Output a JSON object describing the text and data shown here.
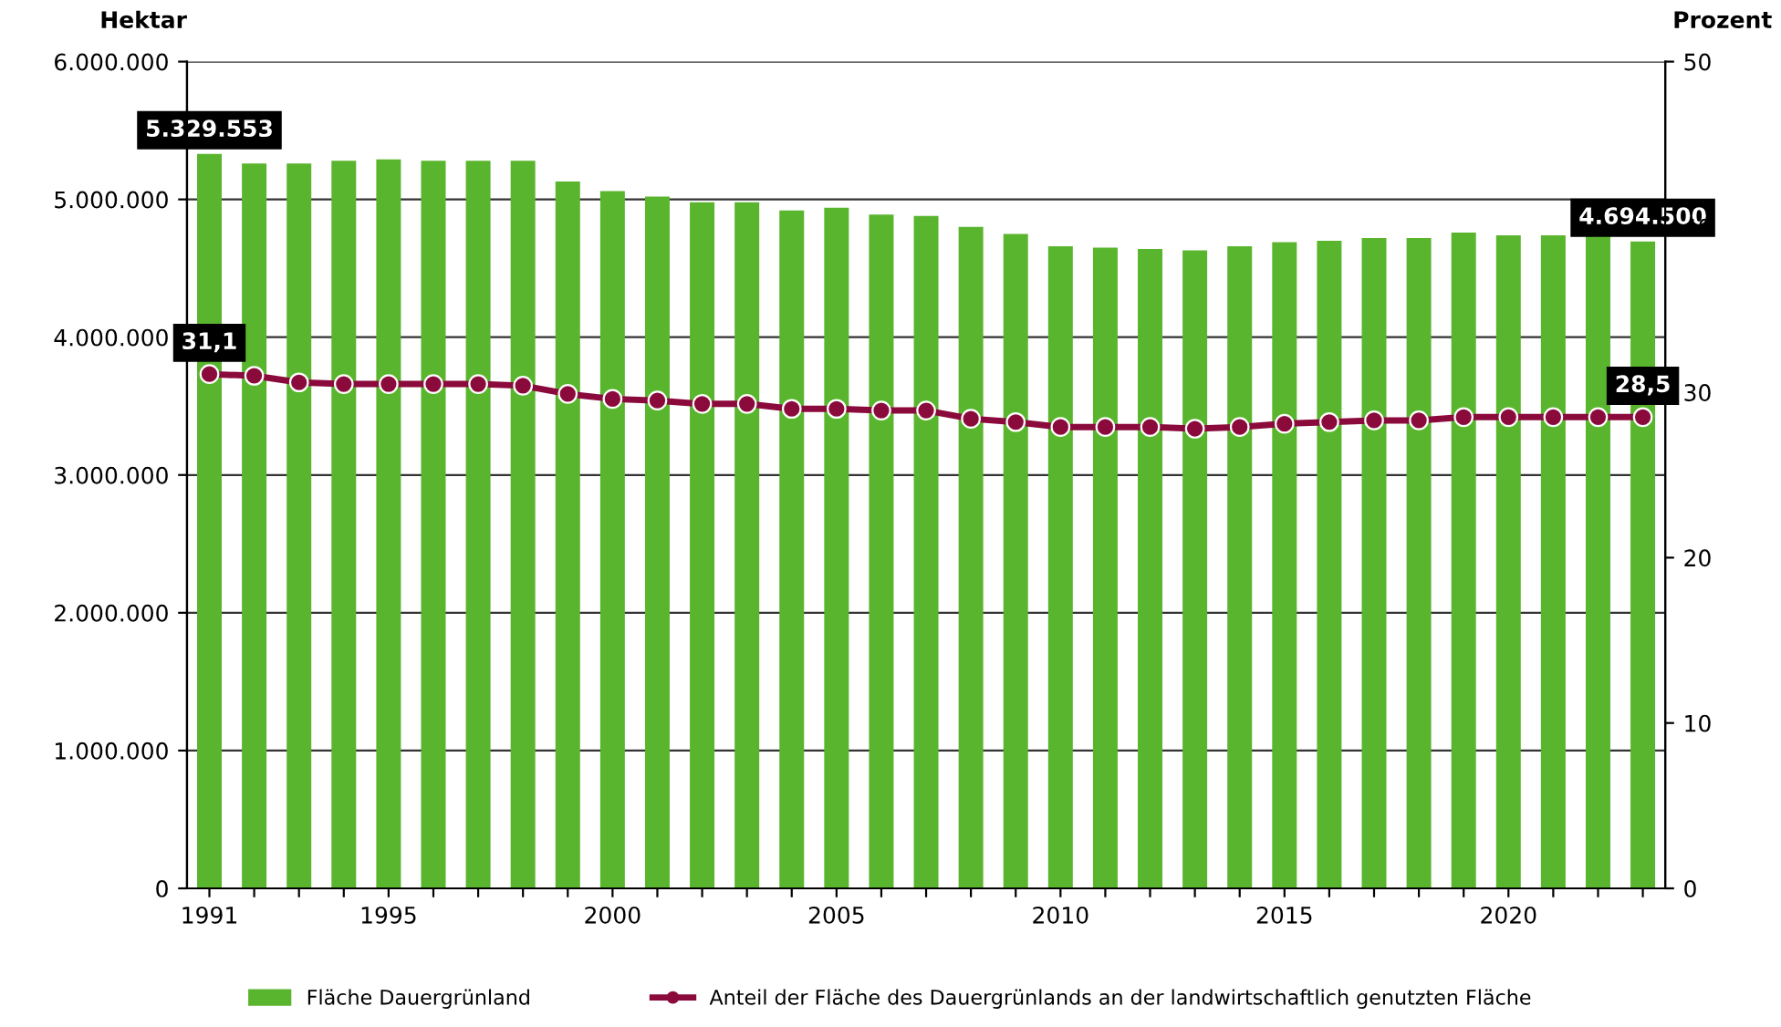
{
  "chart_data": {
    "type": "bar",
    "ylabel": "Hektar",
    "y2label": "Prozent",
    "x": [
      1991,
      1992,
      1993,
      1994,
      1995,
      1996,
      1997,
      1998,
      1999,
      2000,
      2001,
      2002,
      2003,
      2004,
      2005,
      2006,
      2007,
      2008,
      2009,
      2010,
      2011,
      2012,
      2013,
      2014,
      2015,
      2016,
      2017,
      2018,
      2019,
      2020,
      2021,
      2022,
      2023
    ],
    "xlim": [
      1990.5,
      2023.5
    ],
    "xticks": [
      1991,
      {
        "value": 1992,
        "label": null
      },
      {
        "value": 1993,
        "label": null
      },
      {
        "value": 1994,
        "label": null
      },
      1995,
      {
        "value": 1996,
        "label": null
      },
      {
        "value": 1997,
        "label": null
      },
      {
        "value": 1998,
        "label": null
      },
      {
        "value": 1999,
        "label": null
      },
      2000,
      {
        "value": 2001,
        "label": null
      },
      {
        "value": 2002,
        "label": null
      },
      {
        "value": 2003,
        "label": null
      },
      {
        "value": 2004,
        "label": null
      },
      2005,
      {
        "value": 2006,
        "label": null
      },
      {
        "value": 2007,
        "label": null
      },
      {
        "value": 2008,
        "label": null
      },
      {
        "value": 2009,
        "label": null
      },
      2010,
      {
        "value": 2011,
        "label": null
      },
      {
        "value": 2012,
        "label": null
      },
      {
        "value": 2013,
        "label": null
      },
      {
        "value": 2014,
        "label": null
      },
      2015,
      {
        "value": 2016,
        "label": null
      },
      {
        "value": 2017,
        "label": null
      },
      {
        "value": 2018,
        "label": null
      },
      {
        "value": 2019,
        "label": null
      },
      2020,
      {
        "value": 2021,
        "label": null
      },
      {
        "value": 2022,
        "label": null
      },
      {
        "value": 2023,
        "label": null
      }
    ],
    "ylim": [
      0,
      6000000
    ],
    "yticks": [
      0,
      {
        "value": 1000000,
        "label": "1.000.000"
      },
      {
        "value": 2000000,
        "label": "2.000.000"
      },
      {
        "value": 3000000,
        "label": "3.000.000"
      },
      {
        "value": 4000000,
        "label": "4.000.000"
      },
      {
        "value": 5000000,
        "label": "5.000.000"
      },
      {
        "value": 6000000,
        "label": "6.000.000"
      }
    ],
    "y2lim": [
      0,
      50
    ],
    "y2ticks": [
      0,
      10,
      20,
      30,
      40,
      50
    ],
    "grid": "y",
    "legend": "bottom",
    "series": [
      {
        "name": "Fläche Dauergrünland",
        "color": "#5ab52e",
        "values": [
          5329553,
          5260000,
          5260000,
          5280000,
          5290000,
          5280000,
          5280000,
          5280000,
          5130000,
          5060000,
          5020000,
          4980000,
          4980000,
          4920000,
          4940000,
          4890000,
          4880000,
          4800000,
          4750000,
          4660000,
          4650000,
          4640000,
          4630000,
          4660000,
          4690000,
          4700000,
          4720000,
          4720000,
          4760000,
          4740000,
          4740000,
          4740000,
          4694500
        ],
        "value_labels": [
          "5.329.553",
          null,
          null,
          null,
          null,
          null,
          null,
          null,
          null,
          null,
          null,
          null,
          null,
          null,
          null,
          null,
          null,
          null,
          null,
          null,
          null,
          null,
          null,
          null,
          null,
          null,
          null,
          null,
          null,
          null,
          null,
          null,
          "4.694.500"
        ]
      },
      {
        "name": "Anteil der Fläche des Dauergrünlands an der landwirtschaftlich genutzten Fläche",
        "type": "line",
        "axis": "y2",
        "color": "#8b0a3c",
        "marker": "circle",
        "line_style": "solid",
        "values": [
          31.1,
          31.0,
          30.6,
          30.5,
          30.5,
          30.5,
          30.5,
          30.4,
          29.9,
          29.6,
          29.5,
          29.3,
          29.3,
          29.0,
          29.0,
          28.9,
          28.9,
          28.4,
          28.2,
          27.9,
          27.9,
          27.9,
          27.8,
          27.9,
          28.1,
          28.2,
          28.3,
          28.3,
          28.5,
          28.5,
          28.5,
          28.5,
          28.5
        ],
        "value_labels": [
          "31,1",
          null,
          null,
          null,
          null,
          null,
          null,
          null,
          null,
          null,
          null,
          null,
          null,
          null,
          null,
          null,
          null,
          null,
          null,
          null,
          null,
          null,
          null,
          null,
          null,
          null,
          null,
          null,
          null,
          null,
          null,
          null,
          "28,5"
        ]
      }
    ]
  }
}
